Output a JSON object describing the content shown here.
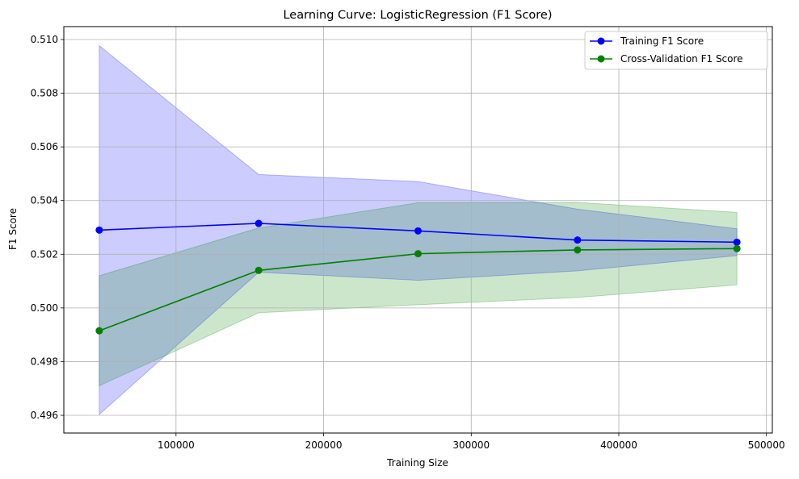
{
  "chart_data": {
    "type": "line",
    "title": "Learning Curve: LogisticRegression (F1 Score)",
    "xlabel": "Training Size",
    "ylabel": "F1 Score",
    "xlim": [
      24000,
      504000
    ],
    "ylim": [
      0.49534,
      0.51048
    ],
    "xticks": [
      100000,
      200000,
      300000,
      400000,
      500000
    ],
    "xtick_labels": [
      "100000",
      "200000",
      "300000",
      "400000",
      "500000"
    ],
    "yticks": [
      0.496,
      0.498,
      0.5,
      0.502,
      0.504,
      0.506,
      0.508,
      0.51
    ],
    "ytick_labels": [
      "0.496",
      "0.498",
      "0.500",
      "0.502",
      "0.504",
      "0.506",
      "0.508",
      "0.510"
    ],
    "grid": true,
    "legend_position": "upper right",
    "x": [
      48000,
      156000,
      264000,
      372000,
      480000
    ],
    "series": [
      {
        "name": "Training F1 Score",
        "color": "#0000ff",
        "marker": "circle",
        "values": [
          0.5029,
          0.50315,
          0.50287,
          0.50253,
          0.50245
        ],
        "band_lower": [
          0.49603,
          0.50133,
          0.50103,
          0.50138,
          0.50195
        ],
        "band_upper": [
          0.50977,
          0.50497,
          0.50471,
          0.50368,
          0.50295
        ],
        "band_color": "#0000ff",
        "band_opacity": 0.2
      },
      {
        "name": "Cross-Validation F1 Score",
        "color": "#008000",
        "marker": "circle",
        "values": [
          0.49915,
          0.5014,
          0.50202,
          0.50216,
          0.50221
        ],
        "band_lower": [
          0.4971,
          0.49982,
          0.50012,
          0.50039,
          0.50086
        ],
        "band_upper": [
          0.5012,
          0.50298,
          0.50392,
          0.50393,
          0.50356
        ],
        "band_color": "#008000",
        "band_opacity": 0.2
      }
    ]
  }
}
